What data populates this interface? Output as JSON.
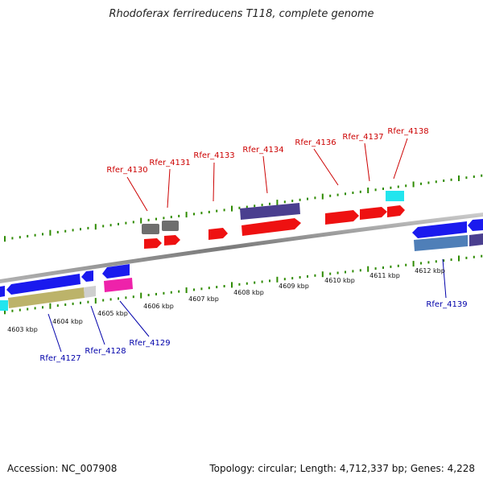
{
  "title": "Rhodoferax ferrireducens T118, complete genome",
  "footer": {
    "accession": "Accession: NC_007908",
    "summary": "Topology: circular; Length: 4,712,337 bp; Genes: 4,228"
  },
  "scale_labels": [
    "4603 kbp",
    "4604 kbp",
    "4605 kbp",
    "4606 kbp",
    "4607 kbp",
    "4608 kbp",
    "4609 kbp",
    "4610 kbp",
    "4611 kbp",
    "4612 kbp"
  ],
  "top_labels": [
    "Rfer_4130",
    "Rfer_4131",
    "Rfer_4133",
    "Rfer_4134",
    "Rfer_4136",
    "Rfer_4137",
    "Rfer_4138"
  ],
  "bottom_labels": [
    "Rfer_4127",
    "Rfer_4128",
    "Rfer_4129",
    "Rfer_4139"
  ],
  "colors": {
    "top_label": "#cc0000",
    "bottom_label": "#0000aa",
    "scale": "#2e8b00",
    "backbone": "#8a8a8a",
    "red_gene": "#ee1111",
    "blue_gene": "#1a1aee",
    "gray_gene": "#6e6e6e",
    "purple_gene": "#4a3f8f",
    "cyan_gene": "#22e5ee",
    "magenta_gene": "#ee22aa",
    "olive_gene": "#bcb36a",
    "steel_gene": "#4f7fb8"
  }
}
